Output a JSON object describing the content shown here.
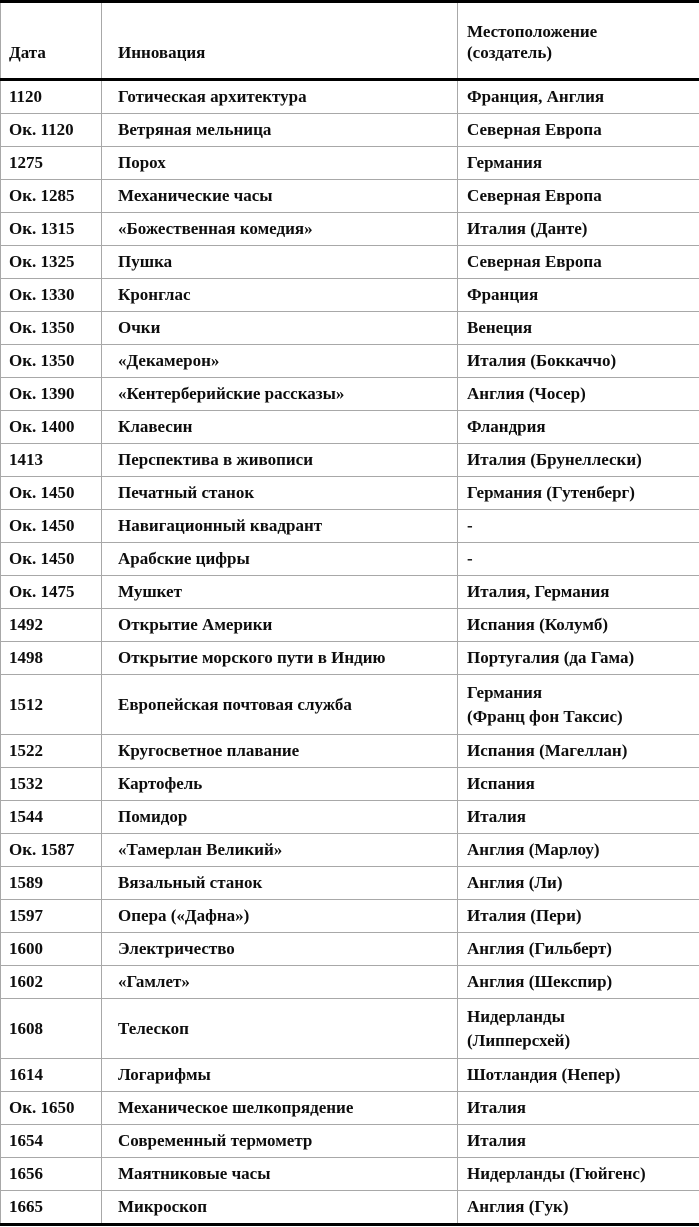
{
  "table": {
    "columns": [
      "Дата",
      "Инновация",
      "Местоположение\n(создатель)"
    ],
    "rows": [
      {
        "date": "1120",
        "innovation": "Готическая архитектура",
        "location": "Франция, Англия"
      },
      {
        "date": "Ок. 1120",
        "innovation": "Ветряная мельница",
        "location": "Северная Европа"
      },
      {
        "date": "1275",
        "innovation": "Порох",
        "location": "Германия"
      },
      {
        "date": "Ок. 1285",
        "innovation": "Механические часы",
        "location": "Северная Европа"
      },
      {
        "date": "Ок. 1315",
        "innovation": "«Божественная комедия»",
        "location": "Италия (Данте)"
      },
      {
        "date": "Ок. 1325",
        "innovation": "Пушка",
        "location": "Северная Европа"
      },
      {
        "date": "Ок. 1330",
        "innovation": "Кронглас",
        "location": "Франция"
      },
      {
        "date": "Ок. 1350",
        "innovation": "Очки",
        "location": "Венеция"
      },
      {
        "date": "Ок. 1350",
        "innovation": "«Декамерон»",
        "location": "Италия (Боккаччо)"
      },
      {
        "date": "Ок. 1390",
        "innovation": "«Кентерберийские рассказы»",
        "location": "Англия (Чосер)"
      },
      {
        "date": "Ок. 1400",
        "innovation": "Клавесин",
        "location": "Фландрия"
      },
      {
        "date": "1413",
        "innovation": "Перспектива в живописи",
        "location": "Италия (Брунеллески)"
      },
      {
        "date": "Ок. 1450",
        "innovation": "Печатный станок",
        "location": "Германия (Гутенберг)"
      },
      {
        "date": "Ок. 1450",
        "innovation": "Навигационный квадрант",
        "location": "-"
      },
      {
        "date": "Ок. 1450",
        "innovation": "Арабские цифры",
        "location": "-"
      },
      {
        "date": "Ок. 1475",
        "innovation": "Мушкет",
        "location": "Италия, Германия"
      },
      {
        "date": "1492",
        "innovation": "Открытие Америки",
        "location": "Испания (Колумб)"
      },
      {
        "date": "1498",
        "innovation": "Открытие морского пути в Индию",
        "location": "Португалия (да Гама)"
      },
      {
        "date": "1512",
        "innovation": "Европейская почтовая служба",
        "location": "Германия\n(Франц фон Таксис)"
      },
      {
        "date": "1522",
        "innovation": "Кругосветное плавание",
        "location": "Испания (Магеллан)"
      },
      {
        "date": "1532",
        "innovation": "Картофель",
        "location": "Испания"
      },
      {
        "date": "1544",
        "innovation": "Помидор",
        "location": "Италия"
      },
      {
        "date": "Ок. 1587",
        "innovation": "«Тамерлан Великий»",
        "location": "Англия (Марлоу)"
      },
      {
        "date": "1589",
        "innovation": "Вязальный станок",
        "location": "Англия (Ли)"
      },
      {
        "date": "1597",
        "innovation": "Опера («Дафна»)",
        "location": "Италия (Пери)"
      },
      {
        "date": "1600",
        "innovation": "Электричество",
        "location": "Англия (Гильберт)"
      },
      {
        "date": "1602",
        "innovation": "«Гамлет»",
        "location": "Англия (Шекспир)"
      },
      {
        "date": "1608",
        "innovation": "Телескоп",
        "location": "Нидерланды\n(Липперсхей)"
      },
      {
        "date": "1614",
        "innovation": "Логарифмы",
        "location": "Шотландия (Непер)"
      },
      {
        "date": "Ок. 1650",
        "innovation": "Механическое шелкопрядение",
        "location": "Италия"
      },
      {
        "date": "1654",
        "innovation": "Современный термометр",
        "location": "Италия"
      },
      {
        "date": "1656",
        "innovation": "Маятниковые часы",
        "location": "Нидерланды (Гюйгенс)"
      },
      {
        "date": "1665",
        "innovation": "Микроскоп",
        "location": "Англия (Гук)"
      }
    ]
  },
  "colors": {
    "text": "#0d0d0d",
    "heavy_rule": "#000000",
    "grid_line": "#a8a8a8",
    "background": "#ffffff"
  }
}
